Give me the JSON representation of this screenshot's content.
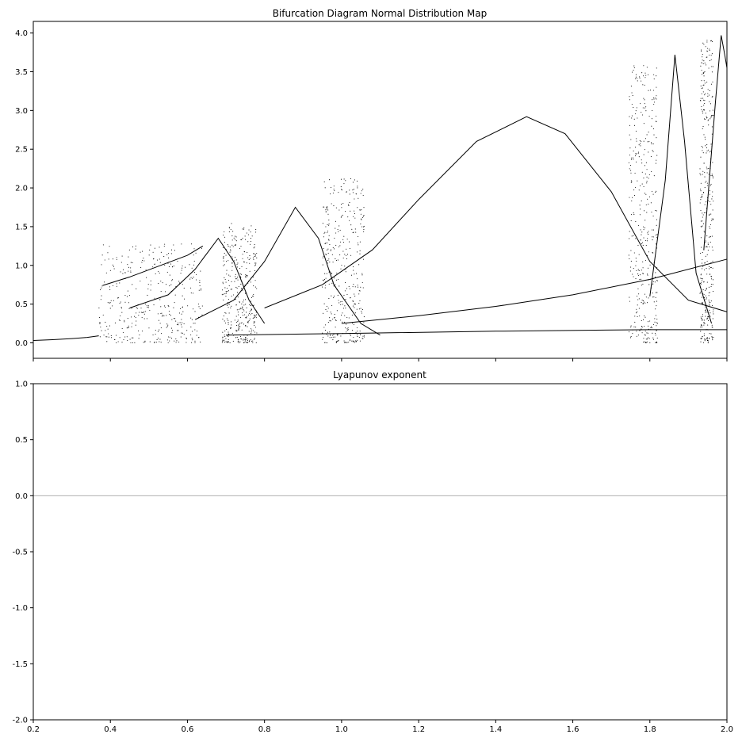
{
  "chart_data": [
    {
      "type": "scatter",
      "title": "Bifurcation Diagram Normal Distribution Map",
      "xlabel": "",
      "ylabel": "",
      "xlim": [
        0.2,
        2.0
      ],
      "ylim": [
        -0.2,
        4.15
      ],
      "yticks": [
        "0.0",
        "0.5",
        "1.0",
        "1.5",
        "2.0",
        "2.5",
        "3.0",
        "3.5",
        "4.0"
      ],
      "show_x_tick_labels": false,
      "grid": false,
      "marker_color": "#000000",
      "series": [
        {
          "label_role": "stable fixed point branch",
          "points": [
            [
              0.2,
              0.03
            ],
            [
              0.25,
              0.04
            ],
            [
              0.3,
              0.055
            ],
            [
              0.34,
              0.07
            ],
            [
              0.37,
              0.09
            ]
          ]
        },
        {
          "label_role": "upper branch 1",
          "points": [
            [
              0.38,
              0.74
            ],
            [
              0.45,
              0.85
            ],
            [
              0.52,
              0.98
            ],
            [
              0.6,
              1.13
            ],
            [
              0.64,
              1.25
            ]
          ]
        },
        {
          "label_role": "hump 1",
          "points": [
            [
              0.45,
              0.45
            ],
            [
              0.55,
              0.62
            ],
            [
              0.62,
              0.95
            ],
            [
              0.68,
              1.35
            ],
            [
              0.72,
              1.05
            ],
            [
              0.76,
              0.55
            ],
            [
              0.8,
              0.25
            ]
          ]
        },
        {
          "label_role": "hump 2",
          "points": [
            [
              0.62,
              0.3
            ],
            [
              0.72,
              0.55
            ],
            [
              0.8,
              1.05
            ],
            [
              0.88,
              1.75
            ],
            [
              0.94,
              1.35
            ],
            [
              0.98,
              0.75
            ],
            [
              1.05,
              0.25
            ],
            [
              1.1,
              0.1
            ]
          ]
        },
        {
          "label_role": "hump 3",
          "points": [
            [
              0.8,
              0.45
            ],
            [
              0.95,
              0.75
            ],
            [
              1.08,
              1.2
            ],
            [
              1.2,
              1.85
            ],
            [
              1.35,
              2.6
            ],
            [
              1.48,
              2.92
            ],
            [
              1.58,
              2.7
            ],
            [
              1.7,
              1.95
            ],
            [
              1.8,
              1.05
            ],
            [
              1.9,
              0.55
            ],
            [
              2.0,
              0.4
            ]
          ]
        },
        {
          "label_role": "rising line",
          "points": [
            [
              1.0,
              0.25
            ],
            [
              1.2,
              0.35
            ],
            [
              1.4,
              0.47
            ],
            [
              1.6,
              0.62
            ],
            [
              1.8,
              0.82
            ],
            [
              2.0,
              1.08
            ]
          ]
        },
        {
          "label_role": "lower lines",
          "points": [
            [
              0.7,
              0.1
            ],
            [
              1.0,
              0.12
            ],
            [
              1.4,
              0.15
            ],
            [
              1.8,
              0.17
            ],
            [
              2.0,
              0.17
            ]
          ]
        },
        {
          "label_role": "hump 4",
          "points": [
            [
              1.8,
              0.6
            ],
            [
              1.84,
              2.1
            ],
            [
              1.865,
              3.72
            ],
            [
              1.89,
              2.6
            ],
            [
              1.92,
              0.9
            ],
            [
              1.96,
              0.25
            ]
          ]
        },
        {
          "label_role": "hump 5",
          "points": [
            [
              1.94,
              1.2
            ],
            [
              1.97,
              3.1
            ],
            [
              1.985,
              3.97
            ],
            [
              1.995,
              3.7
            ],
            [
              2.0,
              3.55
            ]
          ]
        }
      ],
      "chaotic_bands": [
        {
          "x": [
            0.37,
            0.64
          ],
          "y": [
            0.0,
            1.28
          ]
        },
        {
          "x": [
            0.69,
            0.78
          ],
          "y": [
            0.0,
            1.55
          ]
        },
        {
          "x": [
            0.95,
            1.06
          ],
          "y": [
            0.0,
            2.12
          ]
        },
        {
          "x": [
            1.745,
            1.82
          ],
          "y": [
            0.0,
            3.6
          ]
        },
        {
          "x": [
            1.93,
            1.965
          ],
          "y": [
            0.0,
            3.92
          ]
        }
      ]
    },
    {
      "type": "line",
      "title": "Lyapunov exponent",
      "xlabel": "",
      "ylabel": "",
      "xlim": [
        0.2,
        2.0
      ],
      "ylim": [
        -2.0,
        1.0
      ],
      "xticks": [
        "0.2",
        "0.4",
        "0.6",
        "0.8",
        "1.0",
        "1.2",
        "1.4",
        "1.6",
        "1.8",
        "2.0"
      ],
      "yticks": [
        "-2.0",
        "-1.5",
        "-1.0",
        "-0.5",
        "0.0",
        "0.5",
        "1.0"
      ],
      "grid": false,
      "reference_line_y": 0.0,
      "reference_line_color": "#b0b0b0",
      "series": []
    }
  ]
}
